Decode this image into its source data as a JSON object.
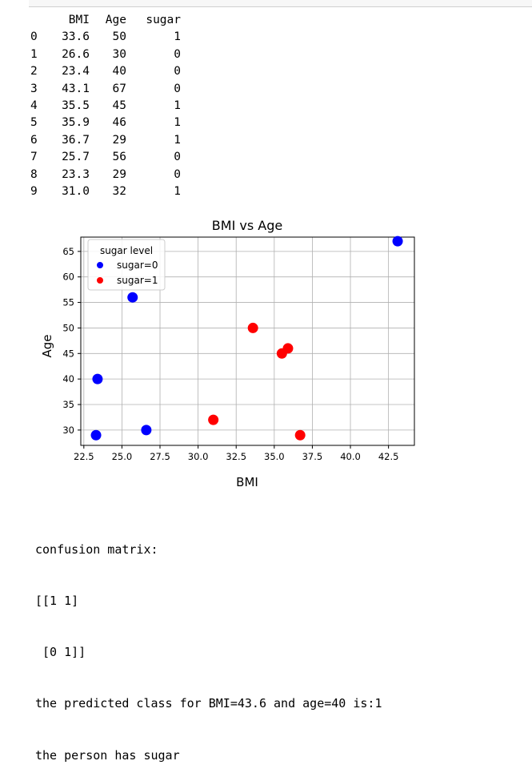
{
  "dataframe": {
    "columns": [
      "BMI",
      "Age",
      "sugar"
    ],
    "rows": [
      {
        "index": "0",
        "BMI": "33.6",
        "Age": "50",
        "sugar": "1"
      },
      {
        "index": "1",
        "BMI": "26.6",
        "Age": "30",
        "sugar": "0"
      },
      {
        "index": "2",
        "BMI": "23.4",
        "Age": "40",
        "sugar": "0"
      },
      {
        "index": "3",
        "BMI": "43.1",
        "Age": "67",
        "sugar": "0"
      },
      {
        "index": "4",
        "BMI": "35.5",
        "Age": "45",
        "sugar": "1"
      },
      {
        "index": "5",
        "BMI": "35.9",
        "Age": "46",
        "sugar": "1"
      },
      {
        "index": "6",
        "BMI": "36.7",
        "Age": "29",
        "sugar": "1"
      },
      {
        "index": "7",
        "BMI": "25.7",
        "Age": "56",
        "sugar": "0"
      },
      {
        "index": "8",
        "BMI": "23.3",
        "Age": "29",
        "sugar": "0"
      },
      {
        "index": "9",
        "BMI": "31.0",
        "Age": "32",
        "sugar": "1"
      }
    ]
  },
  "chart_data": {
    "type": "scatter",
    "title": "BMI vs Age",
    "xlabel": "BMI",
    "ylabel": "Age",
    "xlim": [
      22.3,
      44.2
    ],
    "ylim": [
      27,
      67.8
    ],
    "xticks": [
      "22.5",
      "25.0",
      "27.5",
      "30.0",
      "32.5",
      "35.0",
      "37.5",
      "40.0",
      "42.5"
    ],
    "xtick_values": [
      22.5,
      25.0,
      27.5,
      30.0,
      32.5,
      35.0,
      37.5,
      40.0,
      42.5
    ],
    "yticks": [
      "30",
      "35",
      "40",
      "45",
      "50",
      "55",
      "60",
      "65"
    ],
    "ytick_values": [
      30,
      35,
      40,
      45,
      50,
      55,
      60,
      65
    ],
    "grid": true,
    "legend_title": "sugar level",
    "legend_position": "top-left",
    "series": [
      {
        "name": "sugar=0",
        "color": "#0000ff",
        "x": [
          26.6,
          23.4,
          43.1,
          25.7,
          23.3
        ],
        "y": [
          30,
          40,
          67,
          56,
          29
        ]
      },
      {
        "name": "sugar=1",
        "color": "#ff0000",
        "x": [
          33.6,
          35.5,
          35.9,
          36.7,
          31.0
        ],
        "y": [
          50,
          45,
          46,
          29,
          32
        ]
      }
    ]
  },
  "output": {
    "lines": [
      "confusion matrix:",
      "[[1 1]",
      " [0 1]]",
      "the predicted class for BMI=43.6 and age=40 is:1",
      "the person has sugar"
    ]
  }
}
